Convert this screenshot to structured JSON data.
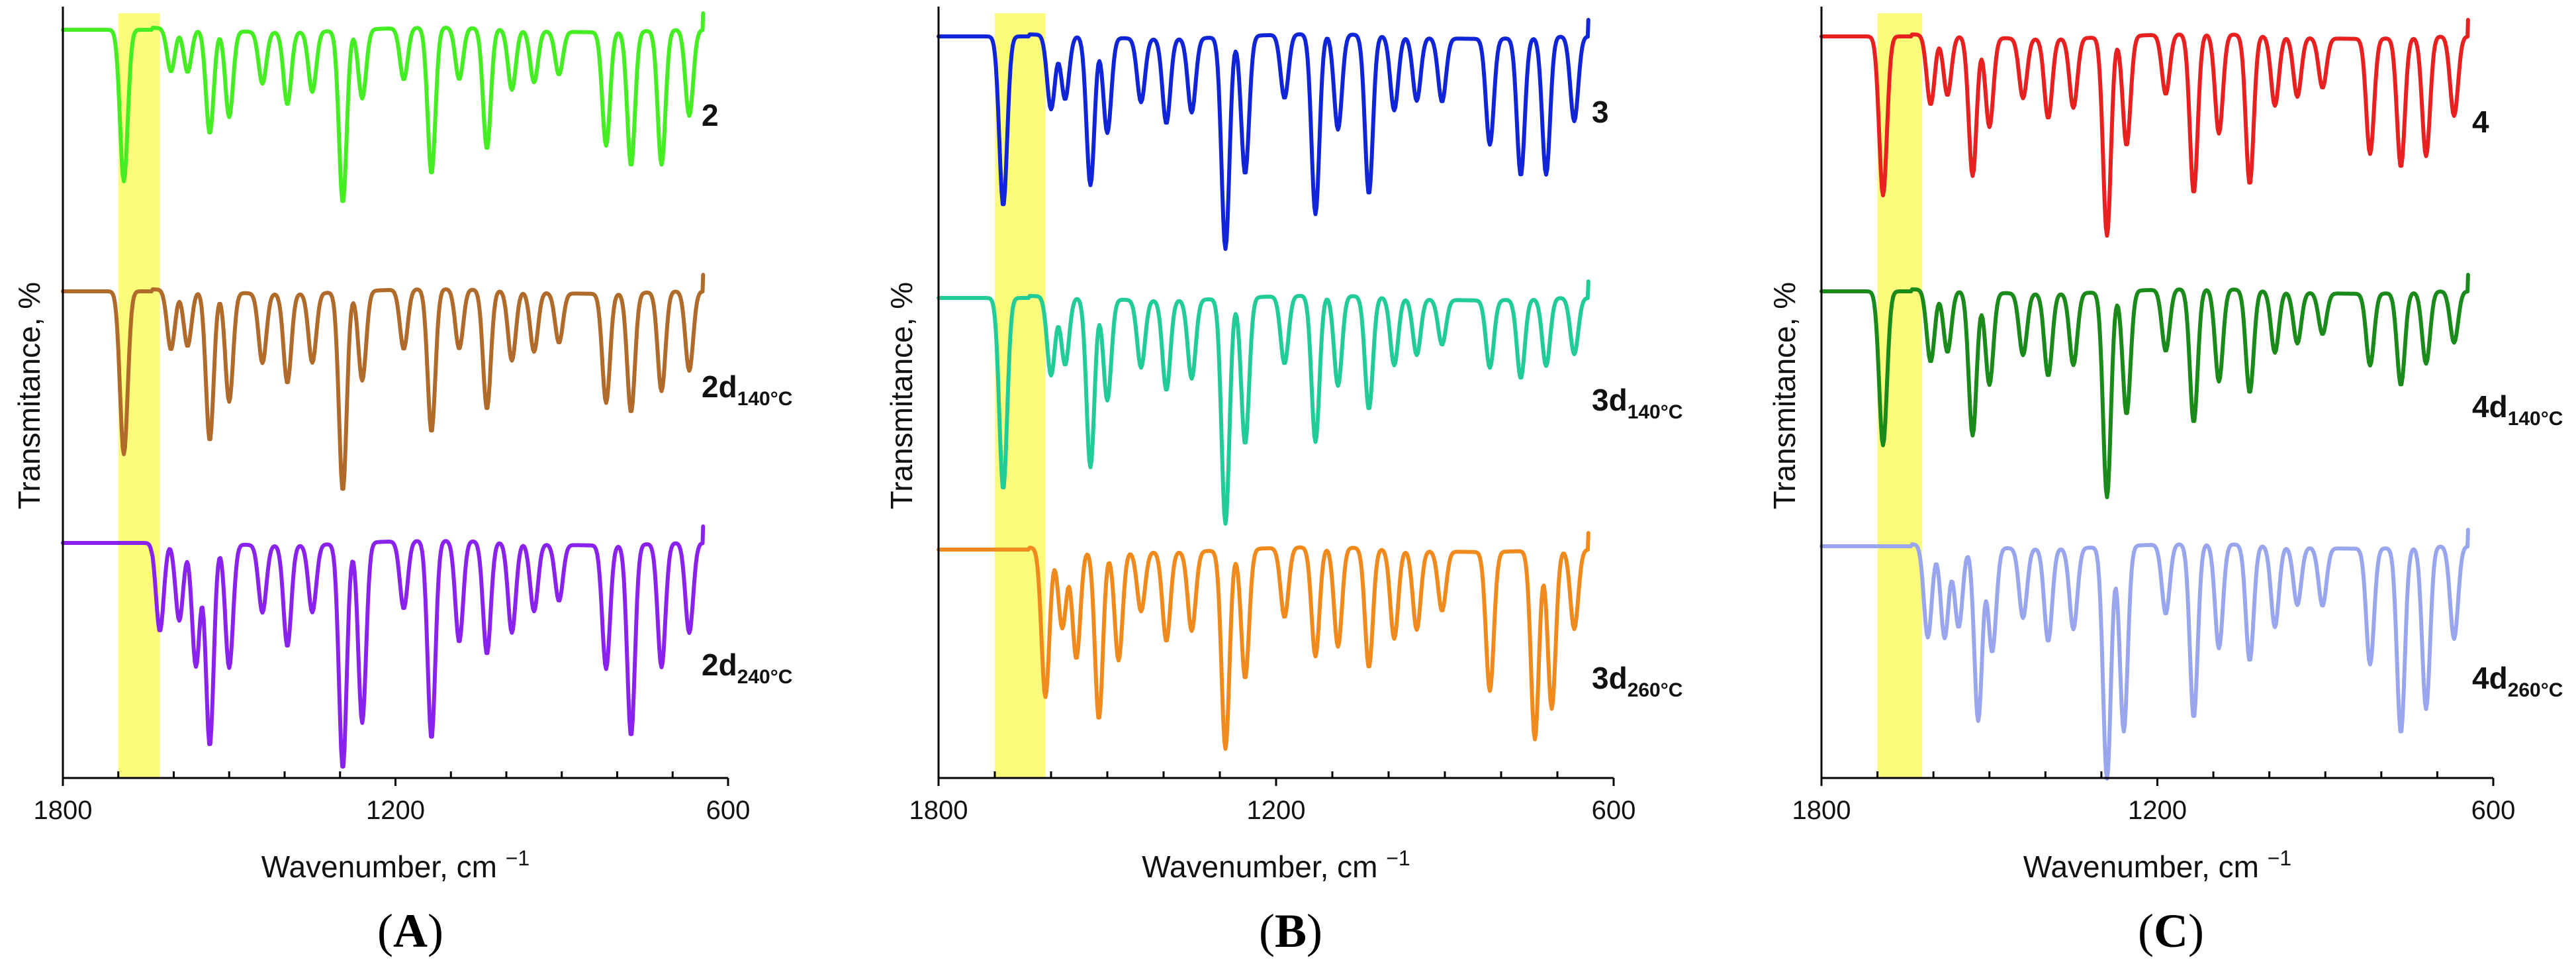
{
  "chart_data": [
    {
      "type": "line",
      "panel_label": "A",
      "xlabel": "Wavenumber, cm",
      "xlabel_exp": "−1",
      "ylabel": "Transmitance, %",
      "xlim": [
        1800,
        600
      ],
      "xticks": [
        "1800",
        "1200",
        "600"
      ],
      "highlight_band": [
        1700,
        1625
      ],
      "series": [
        {
          "name": "2",
          "sub": "",
          "color": "#44ee22",
          "peaks": [
            [
              1690,
              0.88
            ],
            [
              1605,
              0.25
            ],
            [
              1575,
              0.25
            ],
            [
              1535,
              0.6
            ],
            [
              1500,
              0.5
            ],
            [
              1440,
              0.3
            ],
            [
              1395,
              0.42
            ],
            [
              1350,
              0.35
            ],
            [
              1295,
              1.0
            ],
            [
              1260,
              0.4
            ],
            [
              1185,
              0.3
            ],
            [
              1135,
              0.85
            ],
            [
              1085,
              0.3
            ],
            [
              1035,
              0.7
            ],
            [
              990,
              0.35
            ],
            [
              950,
              0.3
            ],
            [
              905,
              0.25
            ],
            [
              820,
              0.66
            ],
            [
              775,
              0.78
            ],
            [
              720,
              0.78
            ],
            [
              670,
              0.5
            ]
          ]
        },
        {
          "name": "2d",
          "sub": "140°C",
          "color": "#b06a2a",
          "peaks": [
            [
              1690,
              0.82
            ],
            [
              1605,
              0.3
            ],
            [
              1575,
              0.28
            ],
            [
              1535,
              0.75
            ],
            [
              1500,
              0.55
            ],
            [
              1440,
              0.35
            ],
            [
              1395,
              0.45
            ],
            [
              1350,
              0.35
            ],
            [
              1295,
              1.0
            ],
            [
              1260,
              0.45
            ],
            [
              1185,
              0.3
            ],
            [
              1135,
              0.72
            ],
            [
              1085,
              0.3
            ],
            [
              1035,
              0.6
            ],
            [
              990,
              0.35
            ],
            [
              950,
              0.3
            ],
            [
              905,
              0.25
            ],
            [
              820,
              0.55
            ],
            [
              775,
              0.6
            ],
            [
              720,
              0.5
            ],
            [
              670,
              0.4
            ]
          ]
        },
        {
          "name": "2d",
          "sub": "240°C",
          "color": "#8a22ee",
          "peaks": [
            [
              1625,
              0.4
            ],
            [
              1590,
              0.35
            ],
            [
              1560,
              0.55
            ],
            [
              1535,
              0.9
            ],
            [
              1500,
              0.55
            ],
            [
              1440,
              0.3
            ],
            [
              1395,
              0.45
            ],
            [
              1350,
              0.3
            ],
            [
              1295,
              1.0
            ],
            [
              1260,
              0.8
            ],
            [
              1185,
              0.3
            ],
            [
              1135,
              0.88
            ],
            [
              1085,
              0.45
            ],
            [
              1035,
              0.5
            ],
            [
              990,
              0.4
            ],
            [
              950,
              0.3
            ],
            [
              905,
              0.25
            ],
            [
              820,
              0.55
            ],
            [
              775,
              0.85
            ],
            [
              720,
              0.55
            ],
            [
              670,
              0.4
            ]
          ]
        }
      ]
    },
    {
      "type": "line",
      "panel_label": "B",
      "xlabel": "Wavenumber, cm",
      "xlabel_exp": "−1",
      "ylabel": "Transmitance, %",
      "xlim": [
        1800,
        600
      ],
      "xticks": [
        "1800",
        "1200",
        "600"
      ],
      "highlight_band": [
        1700,
        1610
      ],
      "series": [
        {
          "name": "3",
          "sub": "",
          "color": "#1024d8",
          "peaks": [
            [
              1685,
              0.8
            ],
            [
              1600,
              0.35
            ],
            [
              1575,
              0.3
            ],
            [
              1530,
              0.7
            ],
            [
              1500,
              0.45
            ],
            [
              1440,
              0.3
            ],
            [
              1395,
              0.4
            ],
            [
              1350,
              0.35
            ],
            [
              1290,
              1.0
            ],
            [
              1255,
              0.65
            ],
            [
              1185,
              0.3
            ],
            [
              1130,
              0.85
            ],
            [
              1090,
              0.45
            ],
            [
              1035,
              0.75
            ],
            [
              990,
              0.35
            ],
            [
              950,
              0.3
            ],
            [
              905,
              0.3
            ],
            [
              820,
              0.5
            ],
            [
              765,
              0.65
            ],
            [
              720,
              0.65
            ],
            [
              670,
              0.4
            ]
          ]
        },
        {
          "name": "3d",
          "sub": "140°C",
          "color": "#22cc99",
          "peaks": [
            [
              1685,
              0.85
            ],
            [
              1600,
              0.35
            ],
            [
              1575,
              0.3
            ],
            [
              1530,
              0.75
            ],
            [
              1500,
              0.45
            ],
            [
              1440,
              0.3
            ],
            [
              1395,
              0.4
            ],
            [
              1350,
              0.35
            ],
            [
              1290,
              1.0
            ],
            [
              1255,
              0.65
            ],
            [
              1185,
              0.3
            ],
            [
              1130,
              0.65
            ],
            [
              1090,
              0.4
            ],
            [
              1035,
              0.5
            ],
            [
              990,
              0.3
            ],
            [
              950,
              0.25
            ],
            [
              905,
              0.2
            ],
            [
              820,
              0.3
            ],
            [
              765,
              0.35
            ],
            [
              720,
              0.3
            ],
            [
              670,
              0.25
            ]
          ]
        },
        {
          "name": "3d",
          "sub": "260°C",
          "color": "#f08a1c",
          "peaks": [
            [
              1610,
              0.75
            ],
            [
              1580,
              0.4
            ],
            [
              1555,
              0.55
            ],
            [
              1515,
              0.85
            ],
            [
              1480,
              0.55
            ],
            [
              1440,
              0.3
            ],
            [
              1395,
              0.45
            ],
            [
              1350,
              0.4
            ],
            [
              1290,
              1.0
            ],
            [
              1255,
              0.65
            ],
            [
              1185,
              0.35
            ],
            [
              1130,
              0.55
            ],
            [
              1090,
              0.5
            ],
            [
              1035,
              0.6
            ],
            [
              990,
              0.45
            ],
            [
              950,
              0.4
            ],
            [
              905,
              0.3
            ],
            [
              820,
              0.7
            ],
            [
              740,
              0.95
            ],
            [
              710,
              0.8
            ],
            [
              670,
              0.4
            ]
          ]
        }
      ]
    },
    {
      "type": "line",
      "panel_label": "C",
      "xlabel": "Wavenumber, cm",
      "xlabel_exp": "−1",
      "ylabel": "Transmitance, %",
      "xlim": [
        1800,
        600
      ],
      "xticks": [
        "1800",
        "1200",
        "600"
      ],
      "highlight_band": [
        1700,
        1620
      ],
      "series": [
        {
          "name": "4",
          "sub": "",
          "color": "#e82020",
          "peaks": [
            [
              1690,
              0.8
            ],
            [
              1605,
              0.35
            ],
            [
              1575,
              0.3
            ],
            [
              1530,
              0.7
            ],
            [
              1500,
              0.45
            ],
            [
              1440,
              0.3
            ],
            [
              1395,
              0.4
            ],
            [
              1350,
              0.35
            ],
            [
              1290,
              1.0
            ],
            [
              1255,
              0.55
            ],
            [
              1185,
              0.3
            ],
            [
              1135,
              0.8
            ],
            [
              1090,
              0.5
            ],
            [
              1035,
              0.75
            ],
            [
              990,
              0.35
            ],
            [
              950,
              0.3
            ],
            [
              905,
              0.25
            ],
            [
              820,
              0.58
            ],
            [
              765,
              0.65
            ],
            [
              720,
              0.6
            ],
            [
              670,
              0.4
            ]
          ]
        },
        {
          "name": "4d",
          "sub": "140°C",
          "color": "#1a8a1a",
          "peaks": [
            [
              1690,
              0.75
            ],
            [
              1605,
              0.35
            ],
            [
              1575,
              0.3
            ],
            [
              1530,
              0.7
            ],
            [
              1500,
              0.45
            ],
            [
              1440,
              0.3
            ],
            [
              1395,
              0.4
            ],
            [
              1350,
              0.35
            ],
            [
              1290,
              1.0
            ],
            [
              1255,
              0.6
            ],
            [
              1185,
              0.3
            ],
            [
              1135,
              0.65
            ],
            [
              1090,
              0.45
            ],
            [
              1035,
              0.5
            ],
            [
              990,
              0.3
            ],
            [
              950,
              0.25
            ],
            [
              905,
              0.2
            ],
            [
              820,
              0.35
            ],
            [
              765,
              0.45
            ],
            [
              720,
              0.35
            ],
            [
              670,
              0.25
            ]
          ]
        },
        {
          "name": "4d",
          "sub": "260°C",
          "color": "#99a6ee",
          "peaks": [
            [
              1610,
              0.4
            ],
            [
              1580,
              0.4
            ],
            [
              1555,
              0.35
            ],
            [
              1520,
              0.75
            ],
            [
              1495,
              0.45
            ],
            [
              1440,
              0.3
            ],
            [
              1395,
              0.4
            ],
            [
              1350,
              0.35
            ],
            [
              1290,
              1.0
            ],
            [
              1260,
              0.8
            ],
            [
              1185,
              0.3
            ],
            [
              1135,
              0.75
            ],
            [
              1090,
              0.45
            ],
            [
              1035,
              0.5
            ],
            [
              990,
              0.35
            ],
            [
              950,
              0.25
            ],
            [
              905,
              0.25
            ],
            [
              820,
              0.5
            ],
            [
              765,
              0.8
            ],
            [
              720,
              0.7
            ],
            [
              670,
              0.4
            ]
          ]
        }
      ]
    }
  ]
}
